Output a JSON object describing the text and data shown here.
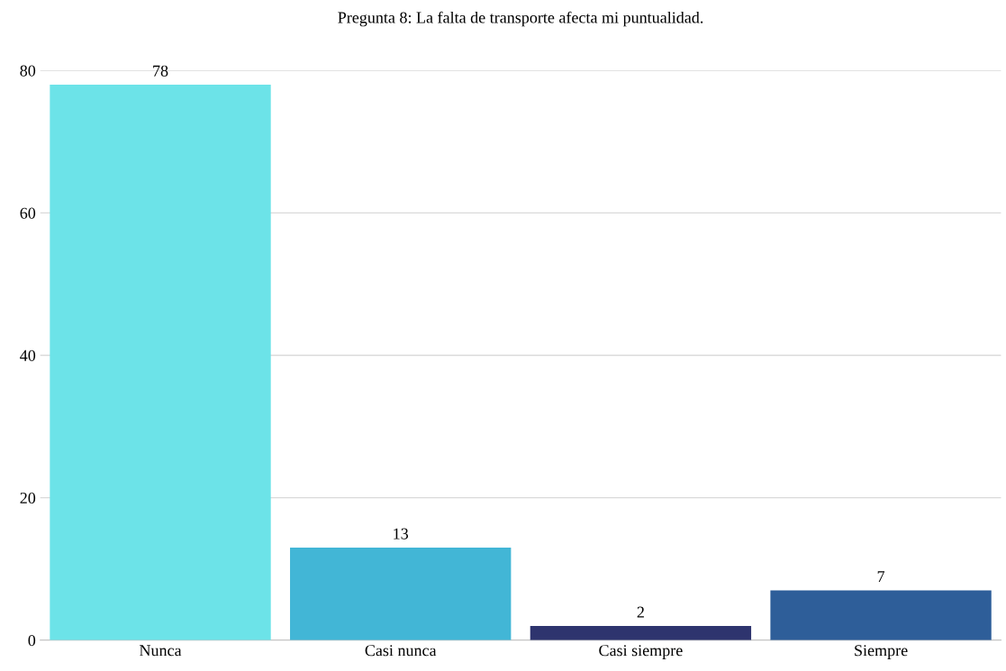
{
  "chart_data": {
    "type": "bar",
    "title": "Pregunta 8: La falta de transporte afecta mi puntualidad.",
    "categories": [
      "Nunca",
      "Casi nunca",
      "Casi siempre",
      "Siempre"
    ],
    "values": [
      78,
      13,
      2,
      7
    ],
    "colors": [
      "#6ce3e8",
      "#42b6d6",
      "#2e346e",
      "#2e5e99"
    ],
    "ylim": [
      0,
      80
    ],
    "yticks": [
      0,
      20,
      40,
      60,
      80
    ],
    "grid": "y",
    "data_labels": true
  }
}
